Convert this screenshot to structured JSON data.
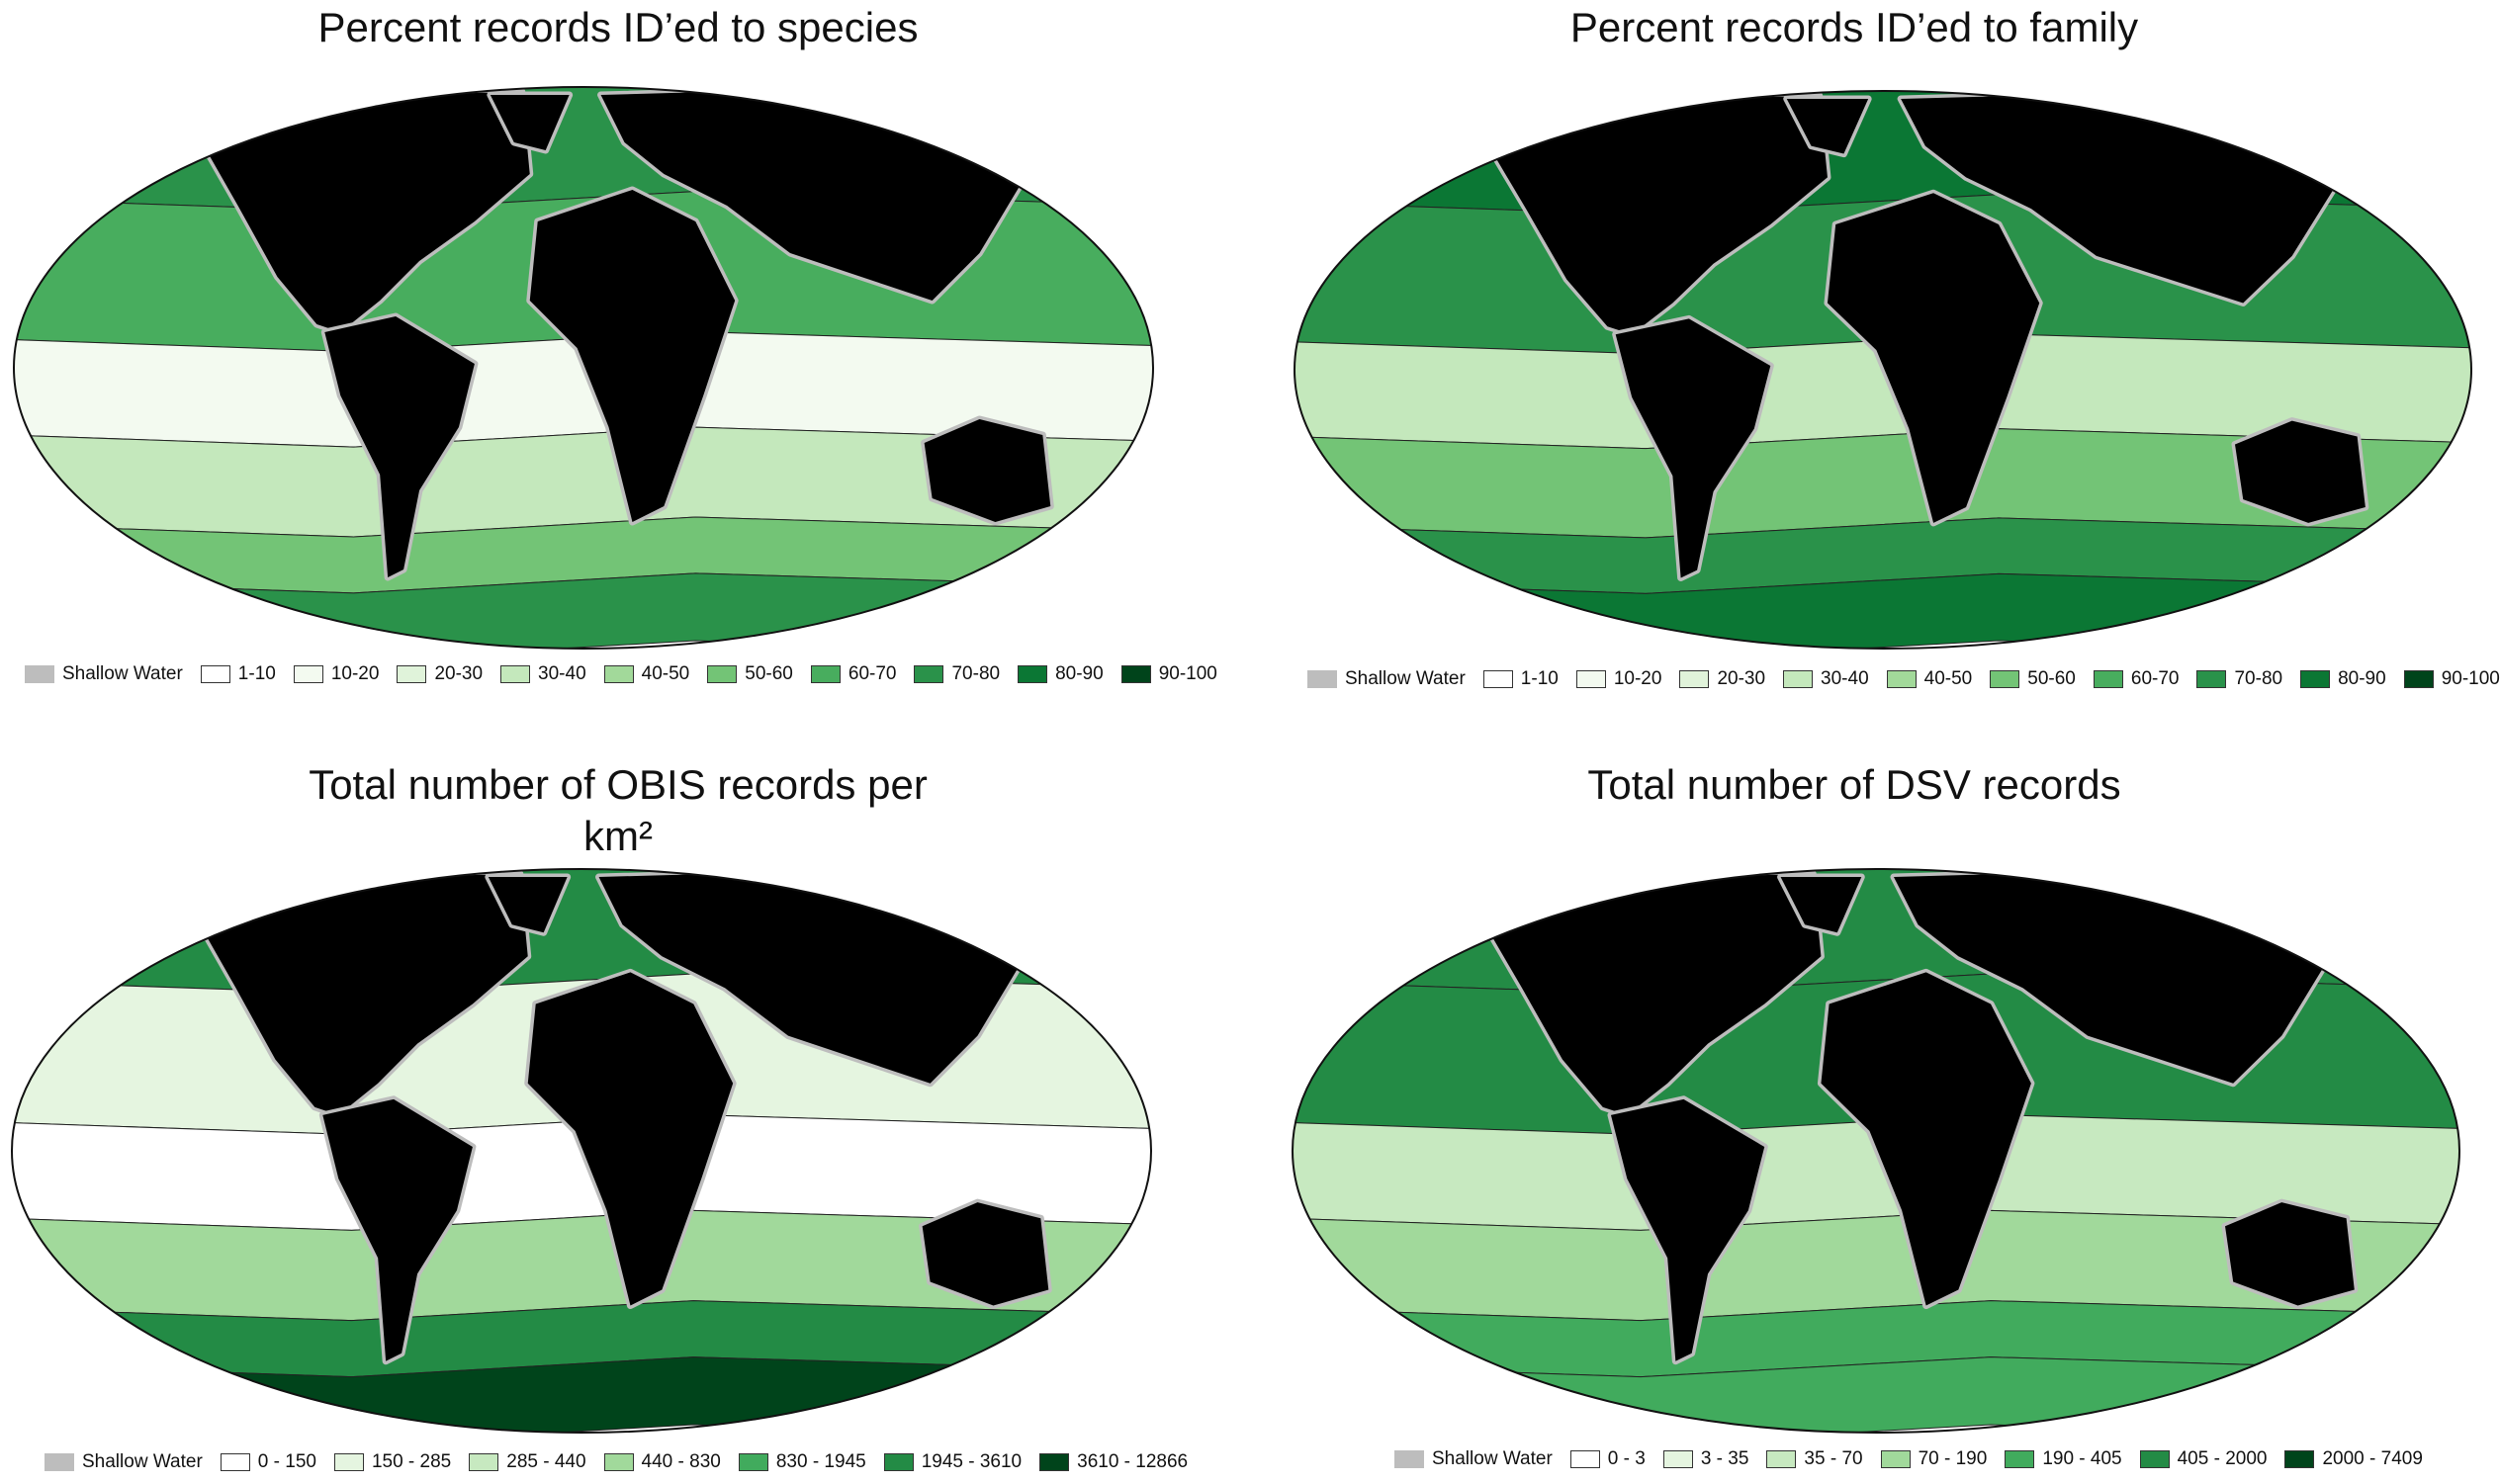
{
  "panels": [
    {
      "title": "Percent records ID’ed to species",
      "legend": [
        {
          "label": "Shallow Water",
          "color": "#bdbdbd"
        },
        {
          "label": "1-10",
          "color": "#ffffff"
        },
        {
          "label": "10-20",
          "color": "#f3faf0"
        },
        {
          "label": "20-30",
          "color": "#e0f3da"
        },
        {
          "label": "30-40",
          "color": "#c4e8bc"
        },
        {
          "label": "40-50",
          "color": "#a2d99a"
        },
        {
          "label": "50-60",
          "color": "#73c476"
        },
        {
          "label": "60-70",
          "color": "#48ad5e"
        },
        {
          "label": "70-80",
          "color": "#2a924a"
        },
        {
          "label": "80-90",
          "color": "#0b7734"
        },
        {
          "label": "90-100",
          "color": "#00441b"
        }
      ]
    },
    {
      "title": "Percent records ID’ed to family",
      "legend": [
        {
          "label": "Shallow Water",
          "color": "#bdbdbd"
        },
        {
          "label": "1-10",
          "color": "#ffffff"
        },
        {
          "label": "10-20",
          "color": "#f3faf0"
        },
        {
          "label": "20-30",
          "color": "#e0f3da"
        },
        {
          "label": "30-40",
          "color": "#c4e8bc"
        },
        {
          "label": "40-50",
          "color": "#a2d99a"
        },
        {
          "label": "50-60",
          "color": "#73c476"
        },
        {
          "label": "60-70",
          "color": "#48ad5e"
        },
        {
          "label": "70-80",
          "color": "#2a924a"
        },
        {
          "label": "80-90",
          "color": "#0b7734"
        },
        {
          "label": "90-100",
          "color": "#00441b"
        }
      ]
    },
    {
      "title": "Total number of OBIS records per km²",
      "legend": [
        {
          "label": "Shallow Water",
          "color": "#bdbdbd"
        },
        {
          "label": "0 - 150",
          "color": "#ffffff"
        },
        {
          "label": "150 - 285",
          "color": "#e5f5e0"
        },
        {
          "label": "285 - 440",
          "color": "#c7e9c0"
        },
        {
          "label": "440 - 830",
          "color": "#a1d99b"
        },
        {
          "label": "830 - 1945",
          "color": "#41ab5d"
        },
        {
          "label": "1945 - 3610",
          "color": "#238b45"
        },
        {
          "label": "3610 - 12866",
          "color": "#00441b"
        }
      ]
    },
    {
      "title": "Total number of DSV records",
      "legend": [
        {
          "label": "Shallow Water",
          "color": "#bdbdbd"
        },
        {
          "label": "0 - 3",
          "color": "#ffffff"
        },
        {
          "label": "3 - 35",
          "color": "#e5f5e0"
        },
        {
          "label": "35 - 70",
          "color": "#c7e9c0"
        },
        {
          "label": "70 - 190",
          "color": "#a1d99b"
        },
        {
          "label": "190 - 405",
          "color": "#41ab5d"
        },
        {
          "label": "405 - 2000",
          "color": "#238b45"
        },
        {
          "label": "2000 - 7409",
          "color": "#00441b"
        }
      ]
    }
  ]
}
